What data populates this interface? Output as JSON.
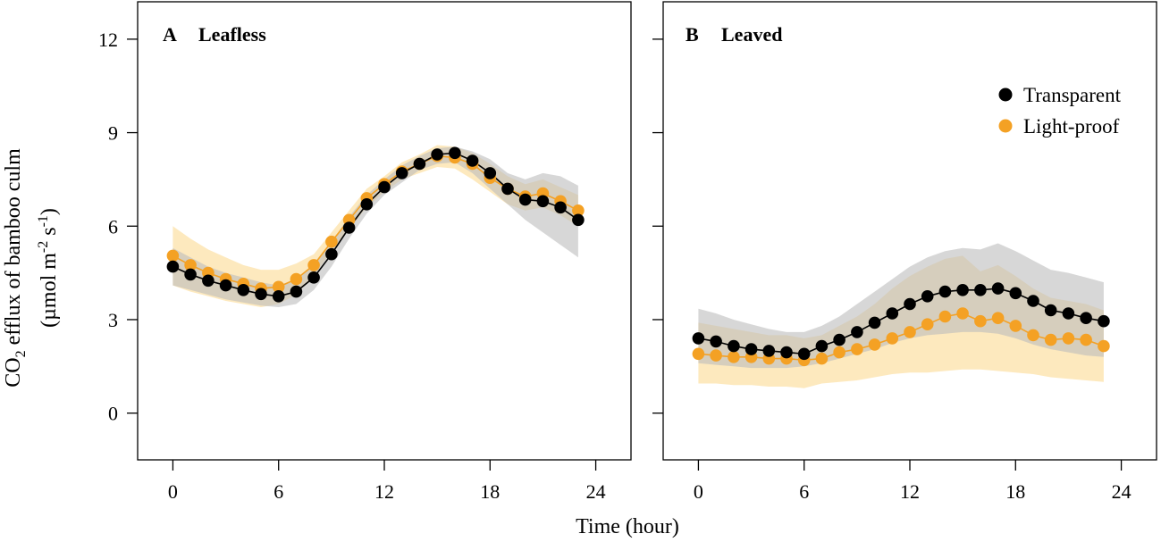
{
  "chart_data": {
    "type": "line",
    "xlabel": "Time (hour)",
    "ylabel": {
      "line1_prefix": "CO",
      "line1_sub": "2",
      "line1_suffix": " efflux of bamboo culm",
      "line2_a": "(µmol m",
      "line2_sup1": "-2",
      "line2_b": " s",
      "line2_sup2": "-1",
      "line2_c": ")"
    },
    "xlim": [
      -2,
      26
    ],
    "ylim": [
      -1.5,
      13.2
    ],
    "xticks": [
      0,
      6,
      12,
      18,
      24
    ],
    "yticks": [
      0,
      3,
      6,
      9,
      12
    ],
    "x": [
      0,
      1,
      2,
      3,
      4,
      5,
      6,
      7,
      8,
      9,
      10,
      11,
      12,
      13,
      14,
      15,
      16,
      17,
      18,
      19,
      20,
      21,
      22,
      23
    ],
    "colors": {
      "transparent": "#000000",
      "light_proof": "#f4a124",
      "transparent_band": "#bdbdbd",
      "light_proof_band": "#fde5b3"
    },
    "legend": {
      "position": "top-right",
      "entries": [
        "Transparent",
        "Light-proof"
      ]
    },
    "panels": [
      {
        "letter": "A",
        "title": "Leafless",
        "series": [
          {
            "name": "Transparent",
            "values": [
              4.7,
              4.45,
              4.25,
              4.1,
              3.95,
              3.82,
              3.75,
              3.9,
              4.35,
              5.1,
              5.95,
              6.7,
              7.25,
              7.7,
              8.0,
              8.3,
              8.35,
              8.1,
              7.7,
              7.2,
              6.85,
              6.8,
              6.6,
              6.2
            ],
            "lower": [
              4.1,
              3.95,
              3.8,
              3.65,
              3.55,
              3.45,
              3.4,
              3.5,
              3.95,
              4.7,
              5.6,
              6.4,
              7.0,
              7.4,
              7.8,
              8.0,
              8.05,
              7.7,
              7.2,
              6.7,
              6.2,
              5.8,
              5.4,
              5.0
            ],
            "upper": [
              5.3,
              5.0,
              4.7,
              4.5,
              4.35,
              4.2,
              4.1,
              4.3,
              4.8,
              5.5,
              6.3,
              7.0,
              7.5,
              7.95,
              8.25,
              8.5,
              8.55,
              8.4,
              8.15,
              7.7,
              7.5,
              7.7,
              7.6,
              7.3
            ]
          },
          {
            "name": "Light-proof",
            "values": [
              5.05,
              4.75,
              4.5,
              4.3,
              4.15,
              4.0,
              4.05,
              4.3,
              4.75,
              5.5,
              6.2,
              6.9,
              7.35,
              7.75,
              8.0,
              8.25,
              8.2,
              8.0,
              7.55,
              7.2,
              6.95,
              7.05,
              6.8,
              6.5
            ],
            "lower": [
              4.1,
              3.9,
              3.75,
              3.6,
              3.5,
              3.4,
              3.5,
              3.8,
              4.4,
              5.2,
              5.9,
              6.6,
              7.1,
              7.5,
              7.7,
              7.9,
              7.85,
              7.5,
              7.1,
              6.7,
              6.5,
              6.6,
              6.35,
              6.0
            ],
            "upper": [
              6.0,
              5.6,
              5.25,
              5.0,
              4.75,
              4.6,
              4.6,
              4.8,
              5.1,
              5.8,
              6.5,
              7.2,
              7.6,
              8.05,
              8.3,
              8.6,
              8.55,
              8.35,
              8.0,
              7.6,
              7.35,
              7.5,
              7.25,
              7.0
            ]
          }
        ]
      },
      {
        "letter": "B",
        "title": "Leaved",
        "series": [
          {
            "name": "Transparent",
            "values": [
              2.4,
              2.3,
              2.15,
              2.05,
              2.0,
              1.95,
              1.9,
              2.15,
              2.35,
              2.6,
              2.9,
              3.2,
              3.5,
              3.75,
              3.9,
              3.95,
              3.95,
              4.0,
              3.85,
              3.6,
              3.3,
              3.2,
              3.05,
              2.95
            ],
            "lower": [
              1.6,
              1.55,
              1.5,
              1.45,
              1.45,
              1.45,
              1.5,
              1.6,
              1.75,
              1.9,
              2.05,
              2.25,
              2.4,
              2.5,
              2.55,
              2.6,
              2.6,
              2.55,
              2.4,
              2.2,
              2.05,
              1.95,
              1.85,
              1.8
            ],
            "upper": [
              3.35,
              3.2,
              3.0,
              2.85,
              2.7,
              2.6,
              2.6,
              2.8,
              3.1,
              3.5,
              3.9,
              4.3,
              4.7,
              5.0,
              5.2,
              5.3,
              5.25,
              5.45,
              5.2,
              4.9,
              4.6,
              4.5,
              4.35,
              4.2
            ]
          },
          {
            "name": "Light-proof",
            "values": [
              1.9,
              1.85,
              1.8,
              1.8,
              1.75,
              1.75,
              1.7,
              1.75,
              1.95,
              2.05,
              2.2,
              2.4,
              2.6,
              2.85,
              3.1,
              3.2,
              2.95,
              3.05,
              2.8,
              2.5,
              2.35,
              2.4,
              2.35,
              2.15
            ],
            "lower": [
              0.95,
              0.95,
              0.9,
              0.9,
              0.85,
              0.85,
              0.8,
              0.95,
              1.0,
              1.05,
              1.15,
              1.25,
              1.3,
              1.3,
              1.35,
              1.4,
              1.4,
              1.35,
              1.3,
              1.25,
              1.15,
              1.1,
              1.05,
              1.0
            ],
            "upper": [
              2.9,
              2.8,
              2.7,
              2.6,
              2.5,
              2.5,
              2.4,
              2.5,
              2.8,
              3.1,
              3.5,
              4.0,
              4.4,
              4.7,
              4.95,
              5.05,
              4.55,
              4.75,
              4.4,
              4.0,
              3.7,
              3.6,
              3.5,
              3.3
            ]
          }
        ]
      }
    ]
  }
}
